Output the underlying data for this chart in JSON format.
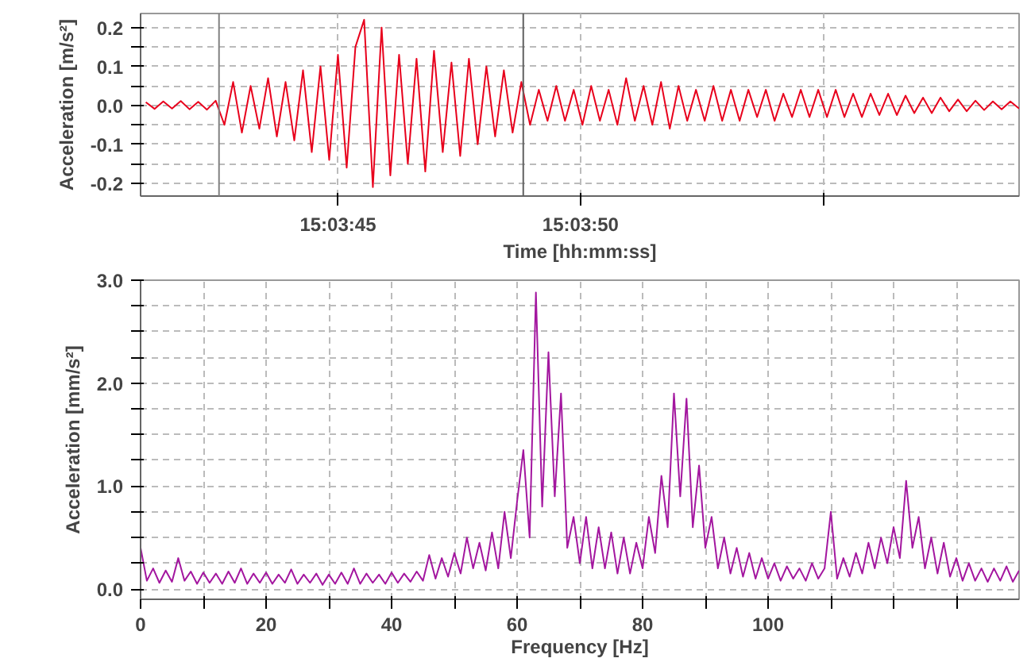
{
  "chart_data": [
    {
      "type": "line",
      "xlabel": "Time [hh:mm:ss]",
      "ylabel": "Acceleration [m/s²]",
      "grid": true,
      "xlim": [
        15.06137,
        15.0664
      ],
      "ylim": [
        -0.233,
        0.236
      ],
      "xticks": [
        {
          "value": 15.0625,
          "label": "15:03:45"
        },
        {
          "value": 15.063889,
          "label": "15:03:50"
        },
        {
          "value": 15.065278,
          "label": null
        }
      ],
      "yticks": [
        {
          "value": -0.2,
          "label": "-0.2"
        },
        {
          "value": -0.15,
          "label": null
        },
        {
          "value": -0.1,
          "label": "-0.1"
        },
        {
          "value": -0.05,
          "label": null
        },
        {
          "value": 0,
          "label": "0.0"
        },
        {
          "value": 0.05,
          "label": null
        },
        {
          "value": 0.1,
          "label": "0.1"
        },
        {
          "value": 0.15,
          "label": null
        },
        {
          "value": 0.2,
          "label": "0.2"
        }
      ],
      "ref_lines": [
        {
          "axis": "x",
          "value": 15.061819,
          "label": null,
          "color": "#808080"
        },
        {
          "axis": "x",
          "value": 15.063561,
          "label": null,
          "color": "#606060"
        }
      ],
      "x": [
        15.0614,
        15.06145,
        15.0615,
        15.06155,
        15.0616,
        15.06165,
        15.0617,
        15.06175,
        15.0618,
        15.06185,
        15.0619,
        15.06195,
        15.062,
        15.06205,
        15.0621,
        15.06215,
        15.0622,
        15.06225,
        15.0623,
        15.06235,
        15.0624,
        15.06245,
        15.0625,
        15.06255,
        15.0626,
        15.06265,
        15.0627,
        15.06275,
        15.0628,
        15.06285,
        15.0629,
        15.06295,
        15.063,
        15.06305,
        15.0631,
        15.06315,
        15.0632,
        15.06325,
        15.0633,
        15.06335,
        15.0634,
        15.06345,
        15.0635,
        15.06355,
        15.0636,
        15.06365,
        15.0637,
        15.06375,
        15.0638,
        15.06385,
        15.0639,
        15.06395,
        15.064,
        15.06405,
        15.0641,
        15.06415,
        15.0642,
        15.06425,
        15.0643,
        15.06435,
        15.0644,
        15.06445,
        15.0645,
        15.06455,
        15.0646,
        15.06465,
        15.0647,
        15.06475,
        15.0648,
        15.06485,
        15.0649,
        15.06495,
        15.065,
        15.06505,
        15.0651,
        15.06515,
        15.0652,
        15.06525,
        15.0653,
        15.06535,
        15.0654,
        15.06545,
        15.0655,
        15.06555,
        15.0656,
        15.06565,
        15.0657,
        15.06575,
        15.0658,
        15.06585,
        15.0659,
        15.06595,
        15.066,
        15.06605,
        15.0661,
        15.06615,
        15.0662,
        15.06625,
        15.0663,
        15.06635,
        15.0664
      ],
      "series": [
        {
          "color": "#e8001c",
          "values": [
            0.008,
            -0.009,
            0.01,
            -0.008,
            0.011,
            -0.01,
            0.009,
            -0.011,
            0.012,
            -0.05,
            0.06,
            -0.07,
            0.05,
            -0.06,
            0.07,
            -0.08,
            0.06,
            -0.09,
            0.09,
            -0.12,
            0.1,
            -0.14,
            0.13,
            -0.16,
            0.15,
            0.22,
            -0.21,
            0.2,
            -0.18,
            0.13,
            -0.15,
            0.12,
            -0.17,
            0.14,
            -0.12,
            0.11,
            -0.13,
            0.12,
            -0.1,
            0.1,
            -0.08,
            0.09,
            -0.07,
            0.06,
            -0.05,
            0.04,
            -0.04,
            0.05,
            -0.04,
            0.04,
            -0.05,
            0.05,
            -0.04,
            0.04,
            -0.05,
            0.07,
            -0.04,
            0.05,
            -0.05,
            0.06,
            -0.06,
            0.05,
            -0.04,
            0.04,
            -0.04,
            0.05,
            -0.04,
            0.04,
            -0.04,
            0.04,
            -0.03,
            0.04,
            -0.04,
            0.03,
            -0.03,
            0.04,
            -0.03,
            0.04,
            -0.03,
            0.04,
            -0.03,
            0.03,
            -0.03,
            0.03,
            -0.025,
            0.03,
            -0.025,
            0.025,
            -0.02,
            0.02,
            -0.02,
            0.02,
            -0.015,
            0.015,
            -0.015,
            0.012,
            -0.012,
            0.01,
            -0.01,
            0.01,
            -0.008
          ]
        }
      ]
    },
    {
      "type": "line",
      "xlabel": "Frequency [Hz]",
      "ylabel": "Acceleration [mm/s²]",
      "grid": true,
      "xlim": [
        0,
        140
      ],
      "ylim": [
        -0.1,
        3.0
      ],
      "xticks": [
        0,
        {
          "value": 10,
          "label": null
        },
        20,
        {
          "value": 30,
          "label": null
        },
        40,
        {
          "value": 50,
          "label": null
        },
        60,
        {
          "value": 70,
          "label": null
        },
        80,
        {
          "value": 90,
          "label": null
        },
        100,
        {
          "value": 110,
          "label": null
        },
        {
          "value": 120,
          "label": null
        },
        {
          "value": 130,
          "label": null
        }
      ],
      "yticks": [
        {
          "value": 0,
          "label": "0.0"
        },
        {
          "value": 0.25,
          "label": null
        },
        {
          "value": 0.5,
          "label": null
        },
        {
          "value": 0.75,
          "label": null
        },
        {
          "value": 1,
          "label": "1.0"
        },
        {
          "value": 1.25,
          "label": null
        },
        {
          "value": 1.5,
          "label": null
        },
        {
          "value": 1.75,
          "label": null
        },
        {
          "value": 2,
          "label": "2.0"
        },
        {
          "value": 2.25,
          "label": null
        },
        {
          "value": 2.5,
          "label": null
        },
        {
          "value": 2.75,
          "label": null
        },
        {
          "value": 3,
          "label": "3.0"
        }
      ],
      "x": [
        0,
        1,
        2,
        3,
        4,
        5,
        6,
        7,
        8,
        9,
        10,
        11,
        12,
        13,
        14,
        15,
        16,
        17,
        18,
        19,
        20,
        21,
        22,
        23,
        24,
        25,
        26,
        27,
        28,
        29,
        30,
        31,
        32,
        33,
        34,
        35,
        36,
        37,
        38,
        39,
        40,
        41,
        42,
        43,
        44,
        45,
        46,
        47,
        48,
        49,
        50,
        51,
        52,
        53,
        54,
        55,
        56,
        57,
        58,
        59,
        60,
        61,
        62,
        63,
        64,
        65,
        66,
        67,
        68,
        69,
        70,
        71,
        72,
        73,
        74,
        75,
        76,
        77,
        78,
        79,
        80,
        81,
        82,
        83,
        84,
        85,
        86,
        87,
        88,
        89,
        90,
        91,
        92,
        93,
        94,
        95,
        96,
        97,
        98,
        99,
        100,
        101,
        102,
        103,
        104,
        105,
        106,
        107,
        108,
        109,
        110,
        111,
        112,
        113,
        114,
        115,
        116,
        117,
        118,
        119,
        120,
        121,
        122,
        123,
        124,
        125,
        126,
        127,
        128,
        129,
        130,
        131,
        132,
        133,
        134,
        135,
        136,
        137,
        138,
        139,
        140
      ],
      "series": [
        {
          "color": "#a3169f",
          "values": [
            0.4,
            0.08,
            0.2,
            0.06,
            0.18,
            0.07,
            0.3,
            0.08,
            0.17,
            0.05,
            0.16,
            0.06,
            0.15,
            0.05,
            0.17,
            0.06,
            0.2,
            0.05,
            0.15,
            0.06,
            0.16,
            0.05,
            0.14,
            0.06,
            0.19,
            0.05,
            0.14,
            0.06,
            0.15,
            0.04,
            0.14,
            0.05,
            0.16,
            0.05,
            0.2,
            0.05,
            0.15,
            0.06,
            0.14,
            0.05,
            0.16,
            0.06,
            0.15,
            0.07,
            0.17,
            0.08,
            0.33,
            0.1,
            0.3,
            0.12,
            0.35,
            0.15,
            0.5,
            0.2,
            0.45,
            0.18,
            0.55,
            0.2,
            0.75,
            0.3,
            0.85,
            1.35,
            0.5,
            2.88,
            0.8,
            2.3,
            0.9,
            1.9,
            0.4,
            0.7,
            0.25,
            0.7,
            0.2,
            0.6,
            0.2,
            0.55,
            0.15,
            0.5,
            0.15,
            0.45,
            0.2,
            0.7,
            0.35,
            1.1,
            0.6,
            1.9,
            0.9,
            1.85,
            0.6,
            1.2,
            0.4,
            0.7,
            0.2,
            0.5,
            0.15,
            0.4,
            0.12,
            0.35,
            0.1,
            0.3,
            0.1,
            0.25,
            0.08,
            0.22,
            0.1,
            0.2,
            0.08,
            0.25,
            0.1,
            0.2,
            0.75,
            0.1,
            0.3,
            0.12,
            0.35,
            0.15,
            0.45,
            0.2,
            0.5,
            0.25,
            0.6,
            0.3,
            1.05,
            0.4,
            0.7,
            0.2,
            0.5,
            0.15,
            0.45,
            0.12,
            0.3,
            0.08,
            0.25,
            0.08,
            0.2,
            0.07,
            0.2,
            0.08,
            0.22,
            0.07,
            0.18
          ]
        }
      ]
    }
  ]
}
